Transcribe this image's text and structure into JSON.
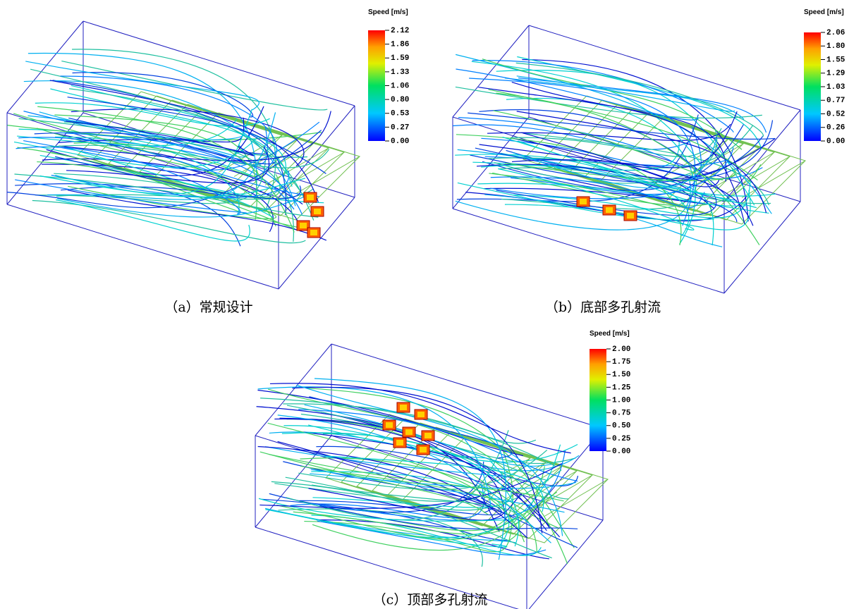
{
  "panels": [
    {
      "caption": "（a）常规设计",
      "legend": {
        "title": "Speed [m/s]",
        "ticks": [
          "2.12",
          "1.86",
          "1.59",
          "1.33",
          "1.06",
          "0.80",
          "0.53",
          "0.27",
          "0.00"
        ]
      }
    },
    {
      "caption": "（b）底部多孔射流",
      "legend": {
        "title": "Speed [m/s]",
        "ticks": [
          "2.06",
          "1.80",
          "1.55",
          "1.29",
          "1.03",
          "0.77",
          "0.52",
          "0.26",
          "0.00"
        ]
      }
    },
    {
      "caption": "（c）顶部多孔射流",
      "legend": {
        "title": "Speed [m/s]",
        "ticks": [
          "2.00",
          "1.75",
          "1.50",
          "1.25",
          "1.00",
          "0.75",
          "0.50",
          "0.25",
          "0.00"
        ]
      }
    }
  ]
}
